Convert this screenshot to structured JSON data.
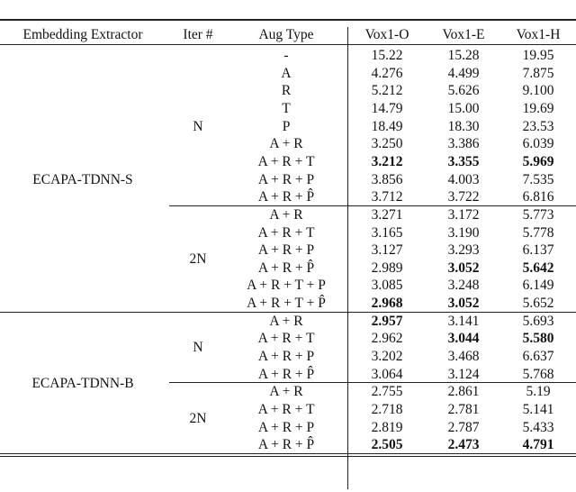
{
  "table": {
    "headers": [
      "Embedding Extractor",
      "Iter #",
      "Aug Type",
      "Vox1-O",
      "Vox1-E",
      "Vox1-H"
    ],
    "groups": [
      {
        "extractor": "ECAPA-TDNN-S",
        "iters": [
          {
            "iter": "N",
            "rows": [
              {
                "aug": "-",
                "values": [
                  "15.22",
                  "15.28",
                  "19.95"
                ],
                "bold": [
                  false,
                  false,
                  false
                ]
              },
              {
                "aug": "A",
                "values": [
                  "4.276",
                  "4.499",
                  "7.875"
                ],
                "bold": [
                  false,
                  false,
                  false
                ]
              },
              {
                "aug": "R",
                "values": [
                  "5.212",
                  "5.626",
                  "9.100"
                ],
                "bold": [
                  false,
                  false,
                  false
                ]
              },
              {
                "aug": "T",
                "values": [
                  "14.79",
                  "15.00",
                  "19.69"
                ],
                "bold": [
                  false,
                  false,
                  false
                ]
              },
              {
                "aug": "P",
                "values": [
                  "18.49",
                  "18.30",
                  "23.53"
                ],
                "bold": [
                  false,
                  false,
                  false
                ]
              },
              {
                "aug": "A + R",
                "values": [
                  "3.250",
                  "3.386",
                  "6.039"
                ],
                "bold": [
                  false,
                  false,
                  false
                ]
              },
              {
                "aug": "A + R + T",
                "values": [
                  "3.212",
                  "3.355",
                  "5.969"
                ],
                "bold": [
                  true,
                  true,
                  true
                ]
              },
              {
                "aug": "A + R + P",
                "values": [
                  "3.856",
                  "4.003",
                  "7.535"
                ],
                "bold": [
                  false,
                  false,
                  false
                ]
              },
              {
                "aug": "A + R + P̂",
                "values": [
                  "3.712",
                  "3.722",
                  "6.816"
                ],
                "bold": [
                  false,
                  false,
                  false
                ]
              }
            ]
          },
          {
            "iter": "2N",
            "rows": [
              {
                "aug": "A + R",
                "values": [
                  "3.271",
                  "3.172",
                  "5.773"
                ],
                "bold": [
                  false,
                  false,
                  false
                ]
              },
              {
                "aug": "A + R + T",
                "values": [
                  "3.165",
                  "3.190",
                  "5.778"
                ],
                "bold": [
                  false,
                  false,
                  false
                ]
              },
              {
                "aug": "A + R + P",
                "values": [
                  "3.127",
                  "3.293",
                  "6.137"
                ],
                "bold": [
                  false,
                  false,
                  false
                ]
              },
              {
                "aug": "A + R + P̂",
                "values": [
                  "2.989",
                  "3.052",
                  "5.642"
                ],
                "bold": [
                  false,
                  true,
                  true
                ]
              },
              {
                "aug": "A + R + T + P",
                "values": [
                  "3.085",
                  "3.248",
                  "6.149"
                ],
                "bold": [
                  false,
                  false,
                  false
                ]
              },
              {
                "aug": "A + R + T + P̂",
                "values": [
                  "2.968",
                  "3.052",
                  "5.652"
                ],
                "bold": [
                  true,
                  true,
                  false
                ]
              }
            ]
          }
        ]
      },
      {
        "extractor": "ECAPA-TDNN-B",
        "iters": [
          {
            "iter": "N",
            "rows": [
              {
                "aug": "A + R",
                "values": [
                  "2.957",
                  "3.141",
                  "5.693"
                ],
                "bold": [
                  true,
                  false,
                  false
                ]
              },
              {
                "aug": "A + R + T",
                "values": [
                  "2.962",
                  "3.044",
                  "5.580"
                ],
                "bold": [
                  false,
                  true,
                  true
                ]
              },
              {
                "aug": "A + R + P",
                "values": [
                  "3.202",
                  "3.468",
                  "6.637"
                ],
                "bold": [
                  false,
                  false,
                  false
                ]
              },
              {
                "aug": "A + R + P̂",
                "values": [
                  "3.064",
                  "3.124",
                  "5.768"
                ],
                "bold": [
                  false,
                  false,
                  false
                ]
              }
            ]
          },
          {
            "iter": "2N",
            "rows": [
              {
                "aug": "A + R",
                "values": [
                  "2.755",
                  "2.861",
                  "5.19"
                ],
                "bold": [
                  false,
                  false,
                  false
                ]
              },
              {
                "aug": "A + R + T",
                "values": [
                  "2.718",
                  "2.781",
                  "5.141"
                ],
                "bold": [
                  false,
                  false,
                  false
                ]
              },
              {
                "aug": "A + R + P",
                "values": [
                  "2.819",
                  "2.787",
                  "5.433"
                ],
                "bold": [
                  false,
                  false,
                  false
                ]
              },
              {
                "aug": "A + R + P̂",
                "values": [
                  "2.505",
                  "2.473",
                  "4.791"
                ],
                "bold": [
                  true,
                  true,
                  true
                ]
              }
            ]
          }
        ]
      }
    ]
  }
}
